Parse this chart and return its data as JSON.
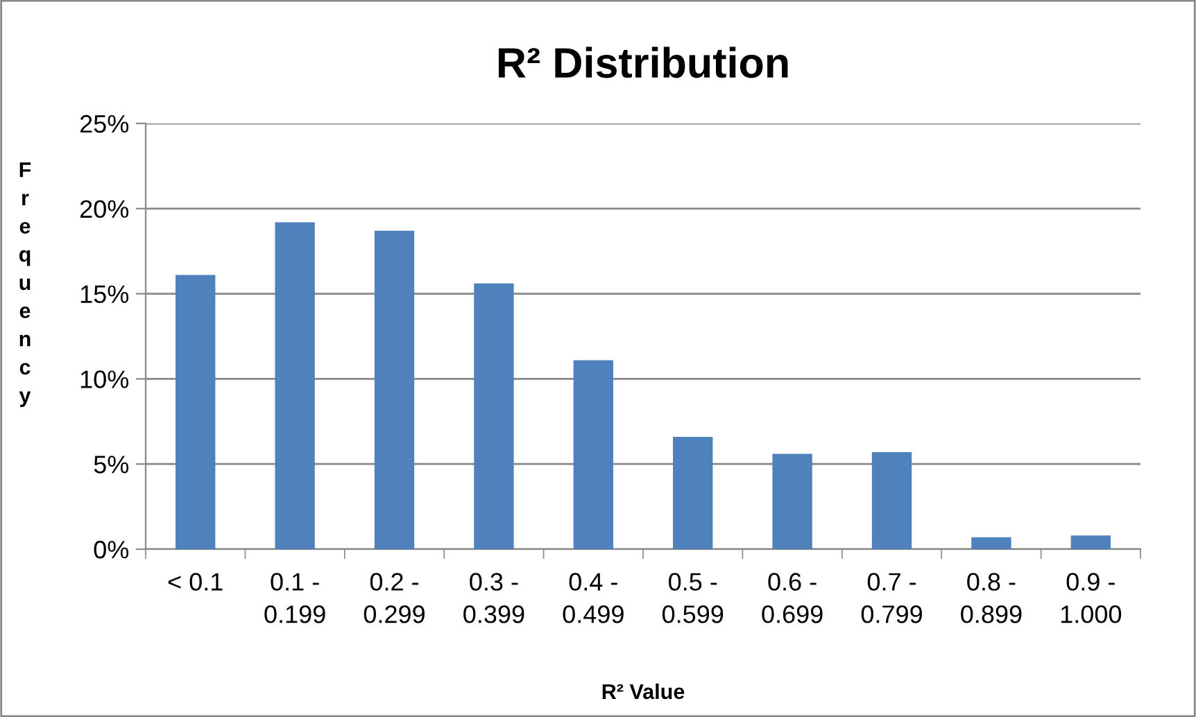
{
  "chart_data": {
    "type": "bar",
    "title": "R² Distribution",
    "xlabel": "R² Value",
    "ylabel": "Frequency",
    "categories": [
      "< 0.1",
      "0.1 - 0.199",
      "0.2 - 0.299",
      "0.3 - 0.399",
      "0.4 - 0.499",
      "0.5 - 0.599",
      "0.6 - 0.699",
      "0.7 - 0.799",
      "0.8 - 0.899",
      "0.9 - 1.000"
    ],
    "series": [
      {
        "color": "#4f81bd",
        "values": [
          16.1,
          19.2,
          18.7,
          15.6,
          11.1,
          6.6,
          5.6,
          5.7,
          0.7,
          0.8
        ]
      }
    ],
    "ylim": [
      0,
      25
    ],
    "yticks": [
      {
        "value": 0,
        "label": "0%"
      },
      {
        "value": 5,
        "label": "5%"
      },
      {
        "value": 10,
        "label": "10%"
      },
      {
        "value": 15,
        "label": "15%"
      },
      {
        "value": 20,
        "label": "20%"
      },
      {
        "value": 25,
        "label": "25%"
      }
    ],
    "grid": "y",
    "legend": false
  }
}
